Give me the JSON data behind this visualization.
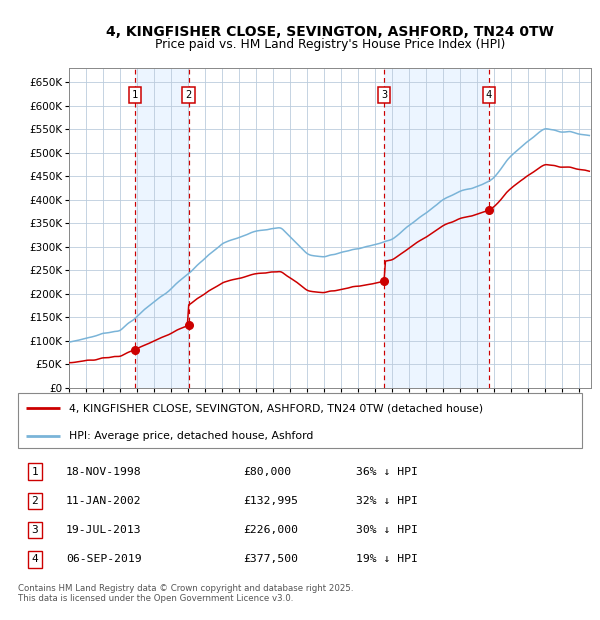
{
  "title_line1": "4, KINGFISHER CLOSE, SEVINGTON, ASHFORD, TN24 0TW",
  "title_line2": "Price paid vs. HM Land Registry's House Price Index (HPI)",
  "background_color": "#ffffff",
  "plot_bg_color": "#ffffff",
  "grid_color": "#bbccdd",
  "transactions": [
    {
      "num": 1,
      "date_str": "18-NOV-1998",
      "date_x": 1998.88,
      "price": 80000,
      "pct": "36% ↓ HPI"
    },
    {
      "num": 2,
      "date_str": "11-JAN-2002",
      "date_x": 2002.03,
      "price": 132995,
      "pct": "32% ↓ HPI"
    },
    {
      "num": 3,
      "date_str": "19-JUL-2013",
      "date_x": 2013.54,
      "price": 226000,
      "pct": "30% ↓ HPI"
    },
    {
      "num": 4,
      "date_str": "06-SEP-2019",
      "date_x": 2019.68,
      "price": 377500,
      "pct": "19% ↓ HPI"
    }
  ],
  "legend_property": "4, KINGFISHER CLOSE, SEVINGTON, ASHFORD, TN24 0TW (detached house)",
  "legend_hpi": "HPI: Average price, detached house, Ashford",
  "footnote_line1": "Contains HM Land Registry data © Crown copyright and database right 2025.",
  "footnote_line2": "This data is licensed under the Open Government Licence v3.0.",
  "ylim": [
    0,
    680000
  ],
  "xlim_start": 1995.0,
  "xlim_end": 2025.7,
  "yticks": [
    0,
    50000,
    100000,
    150000,
    200000,
    250000,
    300000,
    350000,
    400000,
    450000,
    500000,
    550000,
    600000,
    650000
  ],
  "ytick_labels": [
    "£0",
    "£50K",
    "£100K",
    "£150K",
    "£200K",
    "£250K",
    "£300K",
    "£350K",
    "£400K",
    "£450K",
    "£500K",
    "£550K",
    "£600K",
    "£650K"
  ],
  "hpi_color": "#7ab4d8",
  "property_color": "#cc0000",
  "dashed_line_color": "#cc0000",
  "shade_color": "#ddeeff",
  "shade_alpha": 0.55,
  "marker_color": "#cc0000",
  "box_edge_color": "#cc0000"
}
